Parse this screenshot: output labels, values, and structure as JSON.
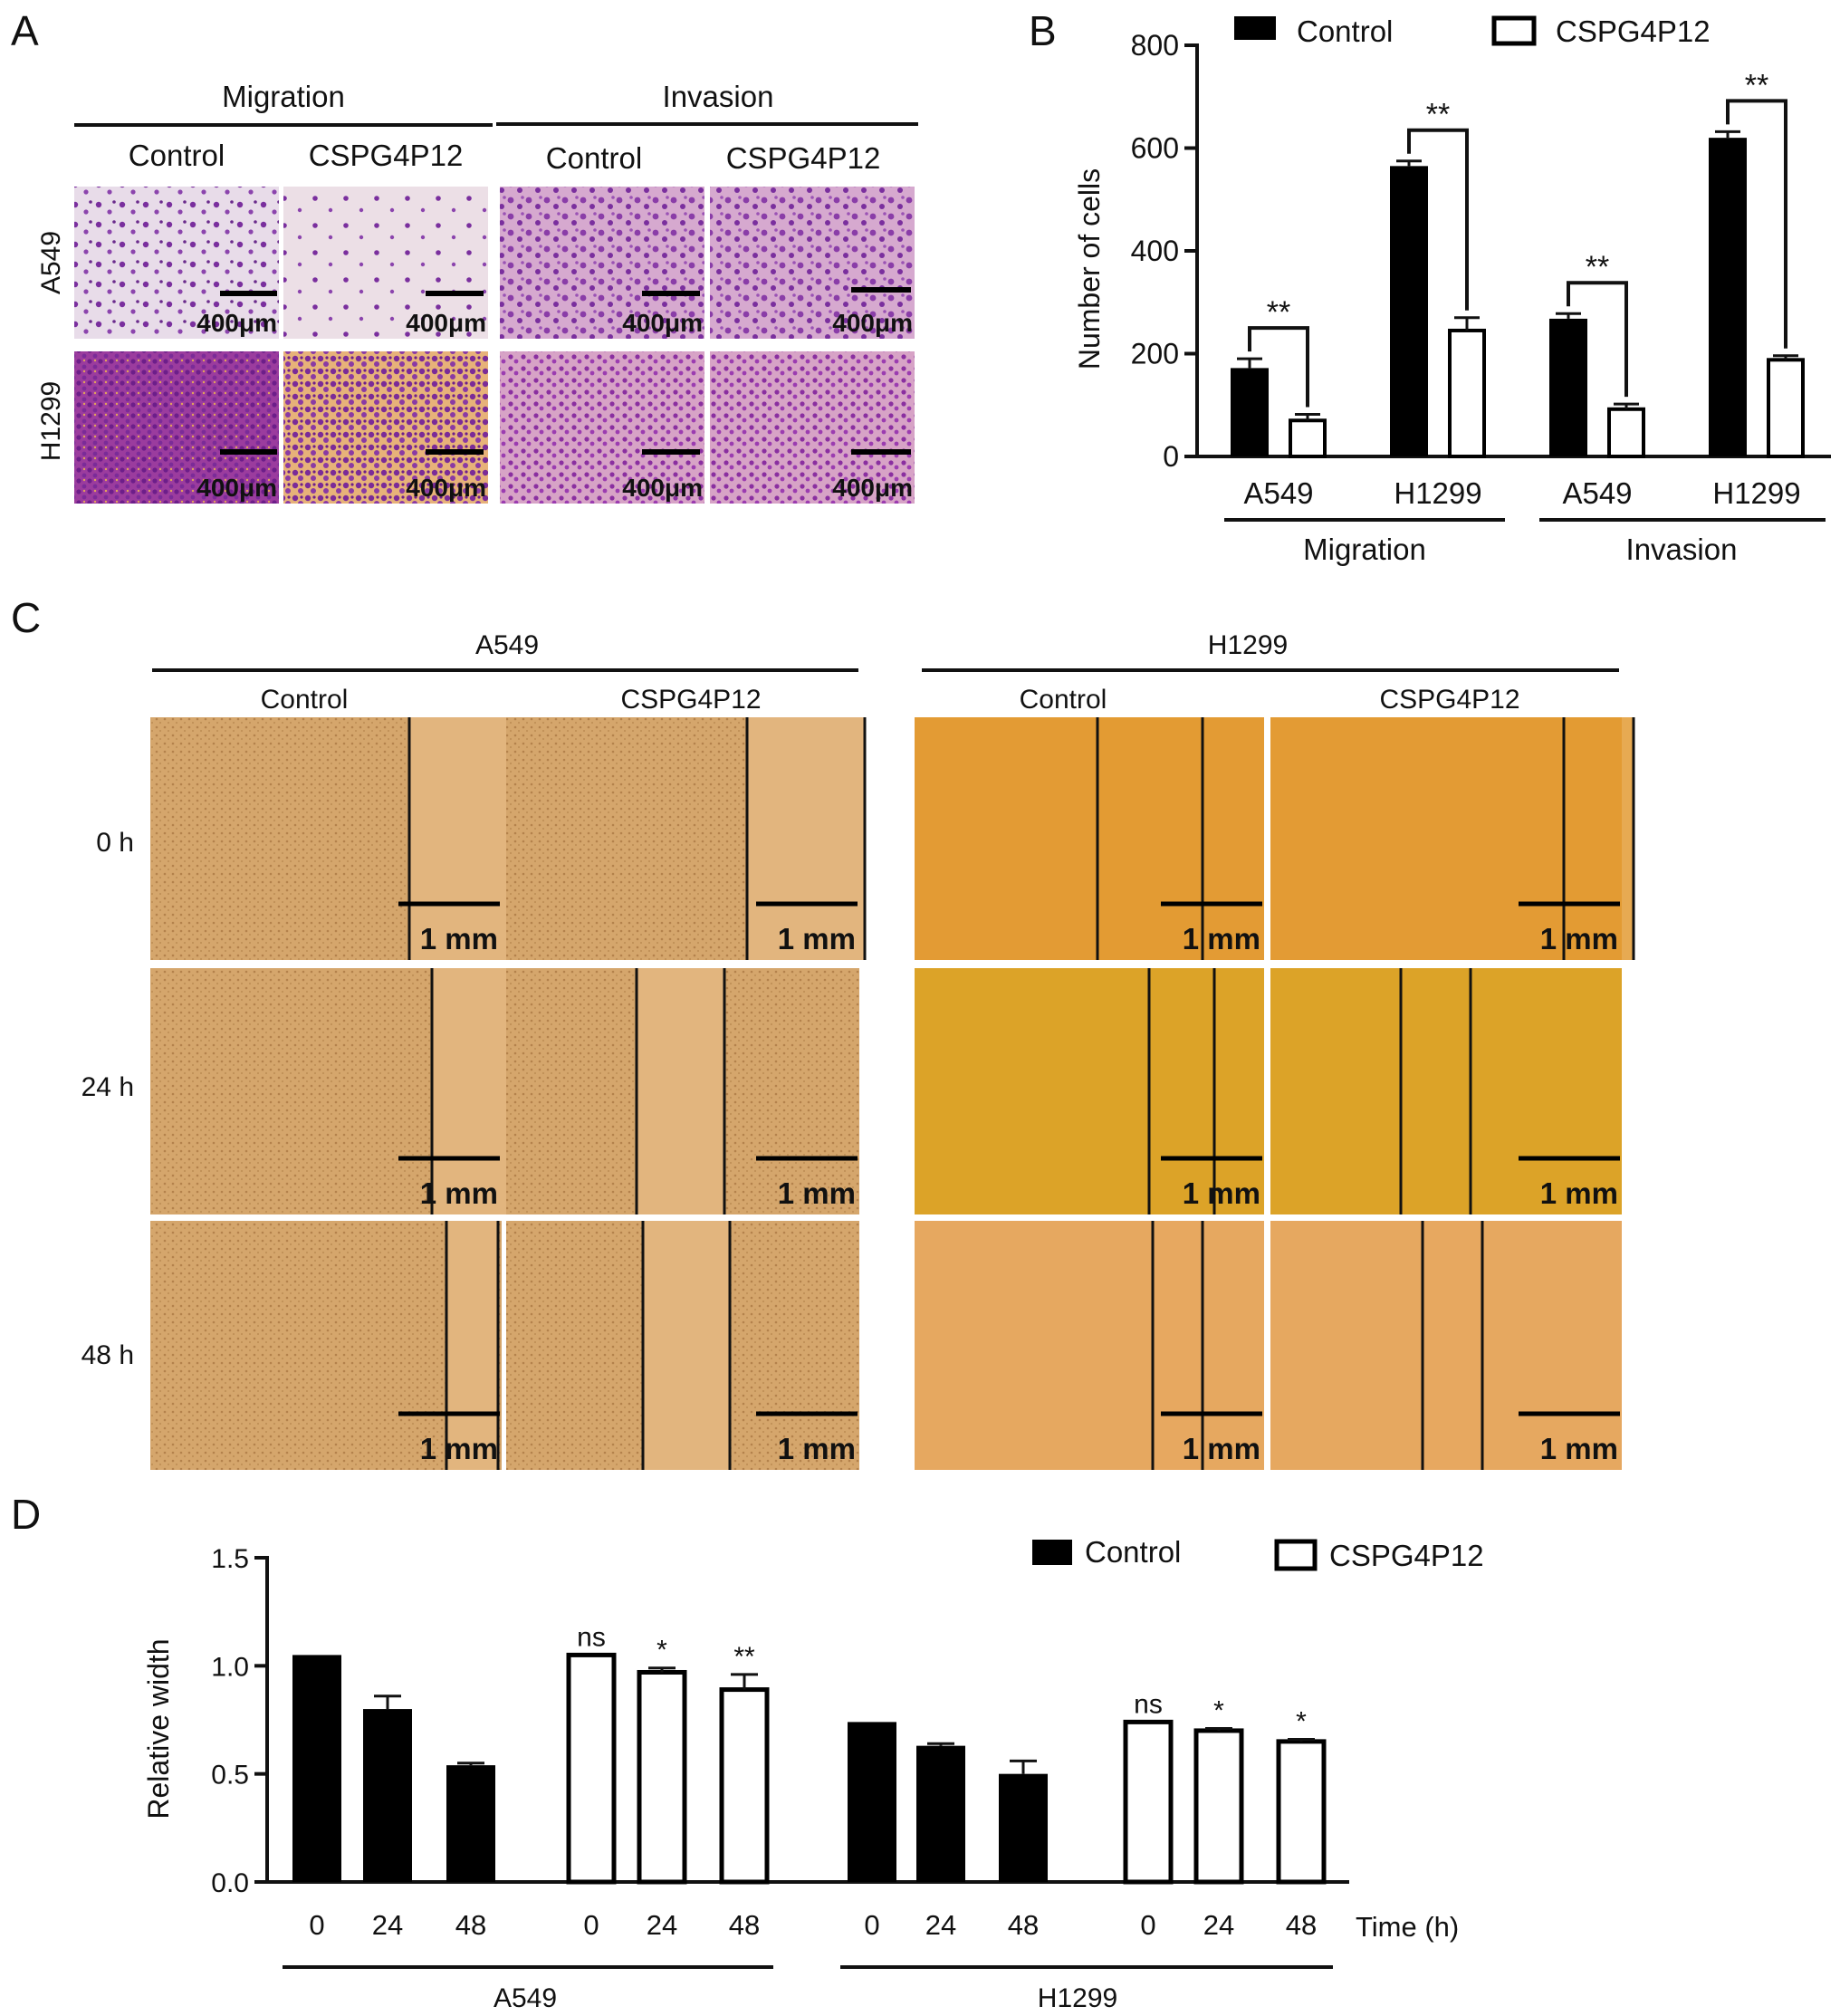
{
  "panels": {
    "A": {
      "letter": "A",
      "group_headers": [
        "Migration",
        "Invasion"
      ],
      "column_headers": [
        "Control",
        "CSPG4P12",
        "Control",
        "CSPG4P12"
      ],
      "row_labels": [
        "A549",
        "H1299"
      ],
      "scale_label": "400μm"
    },
    "B": {
      "letter": "B"
    },
    "C": {
      "letter": "C",
      "cell_lines": [
        "A549",
        "H1299"
      ],
      "column_headers": [
        "Control",
        "CSPG4P12",
        "Control",
        "CSPG4P12"
      ],
      "row_labels": [
        "0 h",
        "24 h",
        "48 h"
      ],
      "scale_label": "1 mm"
    },
    "D": {
      "letter": "D"
    }
  },
  "colors": {
    "transwell_stain": "#7a2f9e",
    "transwell_bg_a549": "#e7d8e6",
    "transwell_bg_h1299": "#c06aa8",
    "a549_field": "#d7a86e",
    "a549_gap": "#e2b57e",
    "h1299_field_0h": "#e39b34",
    "h1299_field_24h": "#dca328",
    "h1299_field_48h": "#e6a860",
    "bar_control": "#000000",
    "bar_cspg4p12": "#ffffff"
  },
  "chart_data": [
    {
      "type": "bar",
      "panel": "B",
      "categories": [
        "A549",
        "H1299",
        "A549",
        "H1299"
      ],
      "groups": [
        "Migration",
        "Invasion"
      ],
      "series": [
        {
          "name": "Control",
          "values": [
            172,
            565,
            268,
            620
          ],
          "errors": [
            18,
            10,
            10,
            12
          ]
        },
        {
          "name": "CSPG4P12",
          "values": [
            70,
            245,
            92,
            188
          ],
          "errors": [
            12,
            25,
            10,
            8
          ]
        }
      ],
      "significance": [
        "**",
        "**",
        "**",
        "**"
      ],
      "ylabel": "Number of cells",
      "ylim": [
        0,
        800
      ],
      "yticks": [
        0,
        200,
        400,
        600,
        800
      ],
      "legend": "top"
    },
    {
      "type": "bar",
      "panel": "D",
      "cell_lines": [
        "A549",
        "H1299"
      ],
      "time_points": [
        "0",
        "24",
        "48"
      ],
      "series": [
        {
          "name": "Control",
          "cell_line": "A549",
          "values": [
            1.05,
            0.8,
            0.54
          ],
          "errors": [
            0,
            0.06,
            0.01
          ]
        },
        {
          "name": "CSPG4P12",
          "cell_line": "A549",
          "values": [
            1.05,
            0.97,
            0.89
          ],
          "errors": [
            0,
            0.02,
            0.07
          ],
          "significance": [
            "ns",
            "*",
            "**"
          ]
        },
        {
          "name": "Control",
          "cell_line": "H1299",
          "values": [
            0.74,
            0.63,
            0.5
          ],
          "errors": [
            0,
            0.01,
            0.06
          ]
        },
        {
          "name": "CSPG4P12",
          "cell_line": "H1299",
          "values": [
            0.74,
            0.7,
            0.65
          ],
          "errors": [
            0,
            0.01,
            0.01
          ],
          "significance": [
            "ns",
            "*",
            "*"
          ]
        }
      ],
      "ylabel": "Relative width",
      "xlabel": "Time (h)",
      "ylim": [
        0,
        1.5
      ],
      "yticks": [
        "0.0",
        "0.5",
        "1.0",
        "1.5"
      ],
      "legend": "top-right"
    }
  ]
}
